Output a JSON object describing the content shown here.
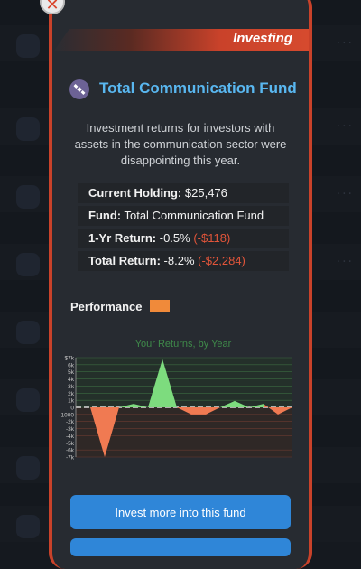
{
  "header": {
    "section_label": "Investing"
  },
  "fund": {
    "icon": "satellite-icon",
    "title": "Total Communication Fund",
    "description": "Investment returns for investors with assets in the communication sector were disappointing this year."
  },
  "info": {
    "holding_label": "Current Holding:",
    "holding_value": "$25,476",
    "fund_label": "Fund:",
    "fund_value": "Total Communication Fund",
    "return1_label": "1-Yr Return:",
    "return1_pct": "-0.5%",
    "return1_amount": "(-$118)",
    "total_label": "Total Return:",
    "total_pct": "-8.2%",
    "total_amount": "(-$2,284)"
  },
  "performance": {
    "label": "Performance",
    "swatch_color": "#f08a3a"
  },
  "chart_data": {
    "type": "area",
    "title": "Your Returns, by Year",
    "xlabel": "",
    "ylabel": "",
    "y_tick_labels": [
      "$7k",
      "6k",
      "5k",
      "4k",
      "3k",
      "2k",
      "1k",
      "0",
      "-1000",
      "-2k",
      "-3k",
      "-4k",
      "-5k",
      "-6k",
      "-7k"
    ],
    "ylim": [
      -7000,
      7000
    ],
    "grid": true,
    "positive_color": "#7ddc7e",
    "negative_color": "#f07a52",
    "series": [
      {
        "values": [
          0,
          0,
          -7000,
          0,
          500,
          0,
          6800,
          0,
          -1000,
          -1000,
          0,
          900,
          0,
          500,
          -1000,
          0
        ]
      }
    ]
  },
  "actions": {
    "invest_more": "Invest more into this fund"
  },
  "colors": {
    "accent": "#c9422a",
    "title_blue": "#59b7f0",
    "button_blue": "#2f86d8",
    "negative": "#e2553a"
  }
}
